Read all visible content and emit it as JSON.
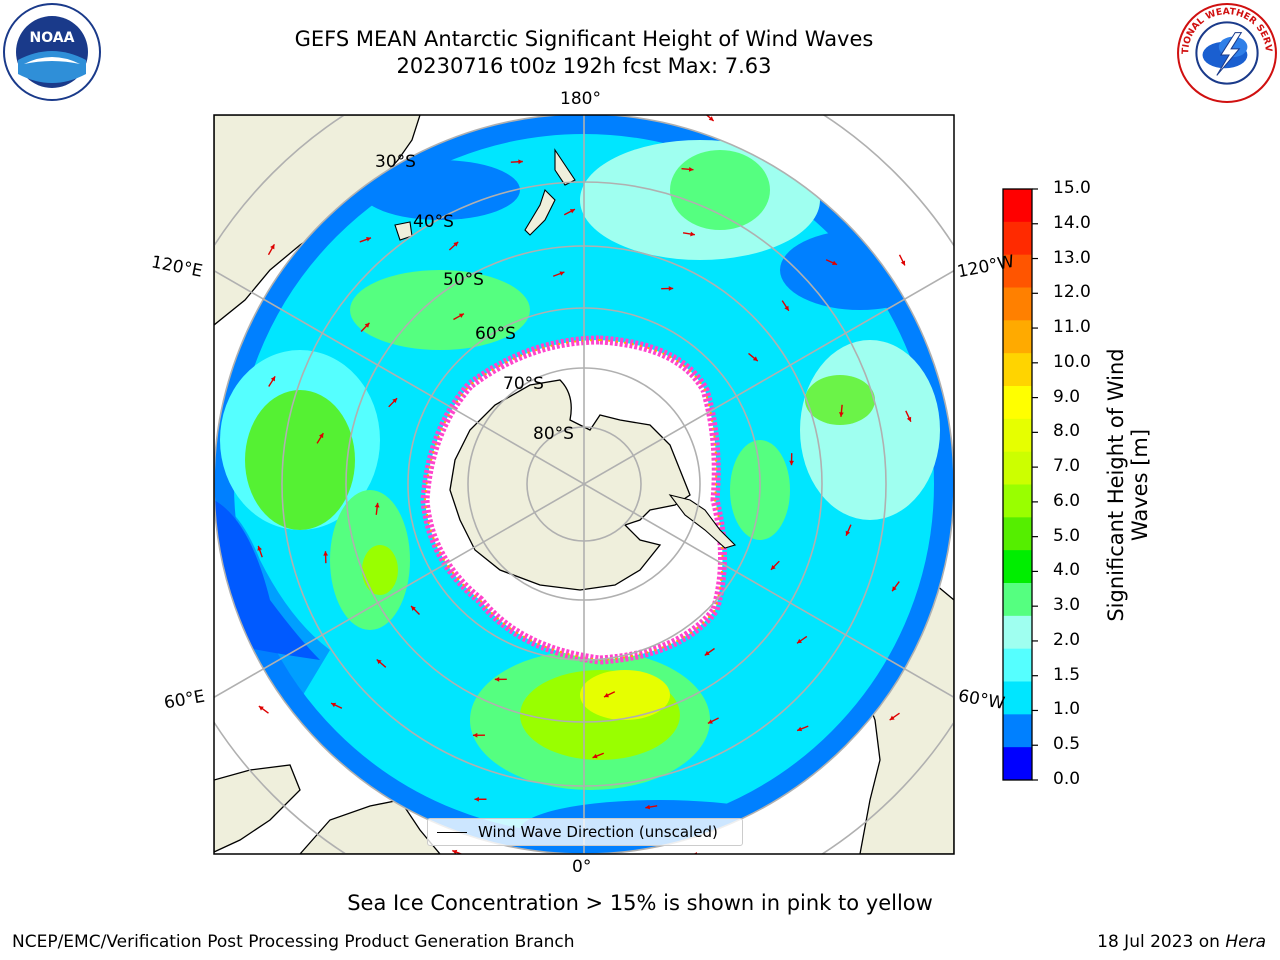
{
  "title": {
    "line1": "GEFS MEAN Antarctic Significant Height of Wind Waves",
    "line2": "20230716 t00z 192h fcst   Max: 7.63"
  },
  "longitude_labels": {
    "top": "180°",
    "bottom": "0°",
    "upper_left": "120°E",
    "upper_right": "120°W",
    "lower_left": "60°E",
    "lower_right": "60°W"
  },
  "latitude_labels": [
    "30°S",
    "40°S",
    "50°S",
    "60°S",
    "70°S",
    "80°S"
  ],
  "legend": {
    "label": "Wind Wave Direction (unscaled)"
  },
  "colorbar": {
    "label_line1": "Significant Height of Wind",
    "label_line2": "Waves [m]",
    "ticks": [
      "15.0",
      "14.0",
      "13.0",
      "12.0",
      "11.0",
      "10.0",
      "9.0",
      "8.0",
      "7.0",
      "6.0",
      "5.0",
      "4.0",
      "3.0",
      "2.0",
      "1.5",
      "1.0",
      "0.5",
      "0.0"
    ],
    "colors": [
      "#ff0000",
      "#ff2a00",
      "#ff5500",
      "#ff8000",
      "#ffaa00",
      "#ffd400",
      "#ffff00",
      "#e6ff00",
      "#ccff00",
      "#99ff00",
      "#55ee00",
      "#00ee00",
      "#55ff80",
      "#9ffff0",
      "#55ffff",
      "#00e6ff",
      "#0080ff",
      "#0000ff"
    ]
  },
  "note": "Sea Ice Concentration > 15% is shown in pink to yellow",
  "credit": "NCEP/EMC/Verification Post Processing Product Generation Branch",
  "date": {
    "text": "18 Jul 2023 on ",
    "machine": "Hera"
  },
  "logos": {
    "left": "NOAA",
    "right": "NATIONAL WEATHER SERVICE"
  }
}
